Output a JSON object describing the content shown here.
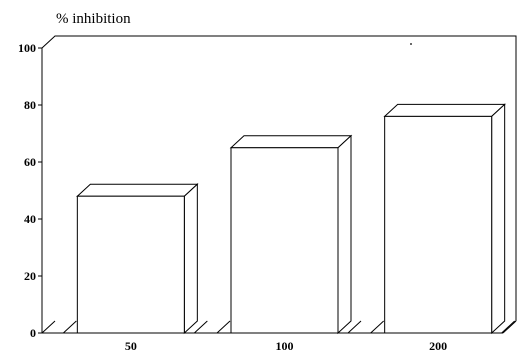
{
  "chart_data": {
    "type": "bar",
    "title": "% inhibition",
    "xlabel": "",
    "ylabel": "",
    "categories": [
      "50",
      "100",
      "200"
    ],
    "series": [
      {
        "values": [
          48,
          65,
          76
        ]
      }
    ],
    "ylim": [
      0,
      100
    ],
    "yticks": [
      0,
      20,
      40,
      60,
      80,
      100
    ],
    "grid": false,
    "style": "3d",
    "bar_color": "#ffffff",
    "edge_color": "#000000"
  }
}
